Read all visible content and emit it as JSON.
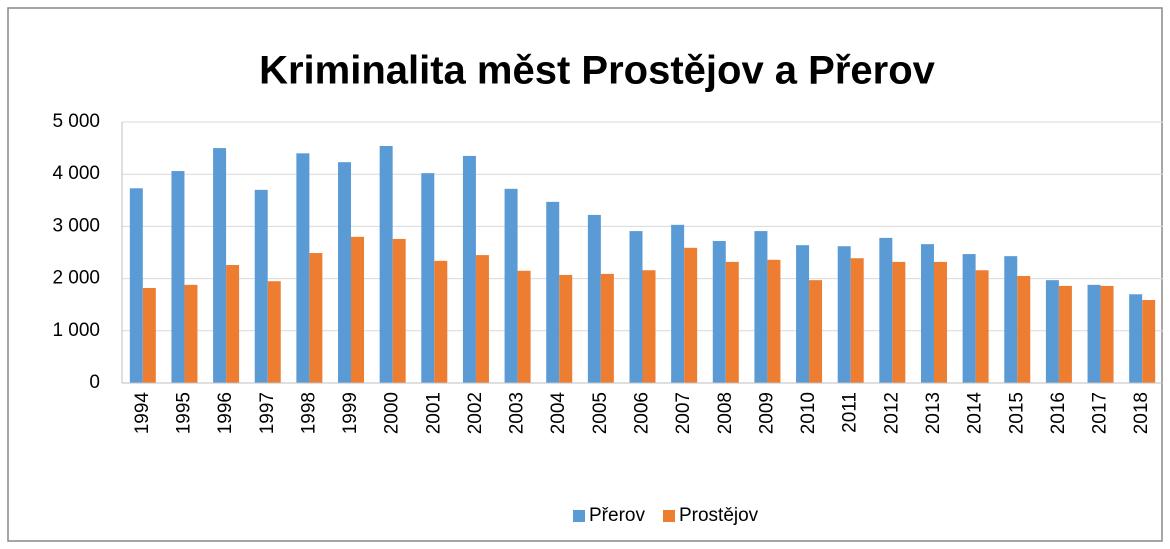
{
  "chart_data": {
    "type": "bar",
    "title": "Kriminalita měst Prostějov a Přerov",
    "categories": [
      "1994",
      "1995",
      "1996",
      "1997",
      "1998",
      "1999",
      "2000",
      "2001",
      "2002",
      "2003",
      "2004",
      "2005",
      "2006",
      "2007",
      "2008",
      "2009",
      "2010",
      "2011",
      "2012",
      "2013",
      "2014",
      "2015",
      "2016",
      "2017",
      "2018"
    ],
    "series": [
      {
        "name": "Přerov",
        "color": "#5b9bd5",
        "values": [
          3730,
          4060,
          4500,
          3700,
          4400,
          4230,
          4540,
          4020,
          4350,
          3720,
          3470,
          3220,
          2910,
          3030,
          2720,
          2910,
          2640,
          2620,
          2780,
          2660,
          2470,
          2430,
          1970,
          1880,
          1700
        ]
      },
      {
        "name": "Prostějov",
        "color": "#ed7d31",
        "values": [
          1820,
          1880,
          2260,
          1950,
          2490,
          2800,
          2760,
          2340,
          2450,
          2150,
          2070,
          2090,
          2160,
          2590,
          2320,
          2360,
          1970,
          2390,
          2320,
          2320,
          2160,
          2050,
          1860,
          1860,
          1590
        ]
      }
    ],
    "ylim": [
      0,
      5000
    ],
    "yticks": [
      0,
      {
        "value": 1000,
        "label": "1 000"
      },
      {
        "value": 2000,
        "label": "2 000"
      },
      {
        "value": 3000,
        "label": "3 000"
      },
      {
        "value": 4000,
        "label": "4 000"
      },
      {
        "value": 5000,
        "label": "5 000"
      }
    ],
    "grid": true,
    "legend": "bottom"
  }
}
